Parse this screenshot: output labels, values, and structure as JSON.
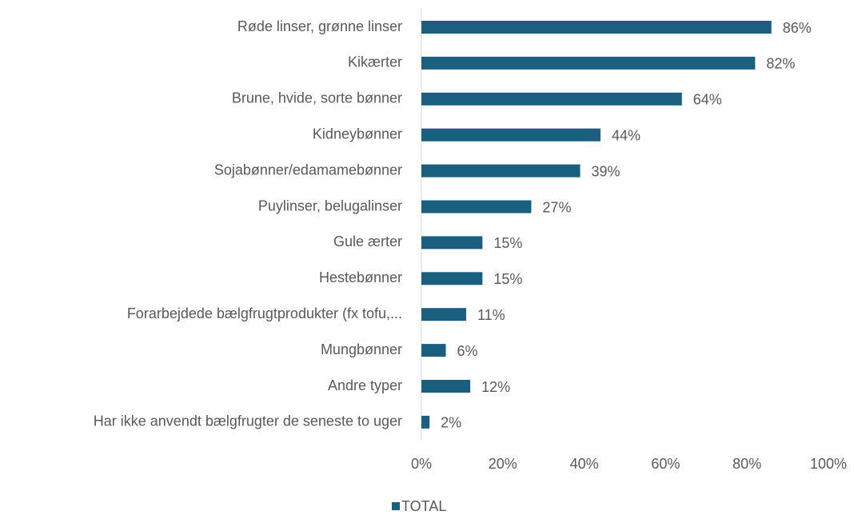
{
  "chart_data": {
    "type": "bar",
    "orientation": "horizontal",
    "categories": [
      "Røde linser, grønne linser",
      "Kikærter",
      "Brune, hvide, sorte bønner",
      "Kidneybønner",
      "Sojabønner/edamamebønner",
      "Puylinser, belugalinser",
      "Gule ærter",
      "Hestebønner",
      "Forarbejdede bælgfrugtprodukter (fx tofu,...",
      "Mungbønner",
      "Andre typer",
      "Har ikke anvendt bælgfrugter de seneste to uger"
    ],
    "series": [
      {
        "name": "TOTAL",
        "color": "#1a5e80",
        "values": [
          86,
          82,
          64,
          44,
          39,
          27,
          15,
          15,
          11,
          6,
          12,
          2
        ],
        "value_labels": [
          "86%",
          "82%",
          "64%",
          "44%",
          "39%",
          "27%",
          "15%",
          "15%",
          "11%",
          "6%",
          "12%",
          "2%"
        ]
      }
    ],
    "xlim": [
      0,
      100
    ],
    "xticks": [
      {
        "value": 0,
        "label": "0%"
      },
      {
        "value": 20,
        "label": "20%"
      },
      {
        "value": 40,
        "label": "40%"
      },
      {
        "value": 60,
        "label": "60%"
      },
      {
        "value": 80,
        "label": "80%"
      },
      {
        "value": 100,
        "label": "100%"
      }
    ],
    "grid": false,
    "legend": "bottom"
  }
}
